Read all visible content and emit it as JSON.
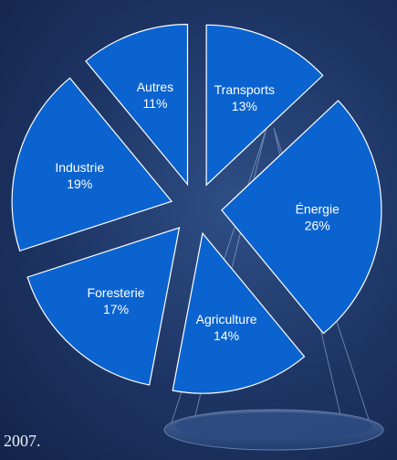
{
  "chart_data": {
    "type": "pie",
    "exploded": true,
    "slices": [
      {
        "label": "Transports",
        "value": 13,
        "display": "13%"
      },
      {
        "label": "Énergie",
        "value": 26,
        "display": "26%"
      },
      {
        "label": "Agriculture",
        "value": 14,
        "display": "14%"
      },
      {
        "label": "Foresterie",
        "value": 17,
        "display": "17%"
      },
      {
        "label": "Industrie",
        "value": 19,
        "display": "19%"
      },
      {
        "label": "Autres",
        "value": 11,
        "display": "11%"
      }
    ],
    "colors": {
      "slice_fill": "#0b63cf",
      "slice_stroke": "#ffffff",
      "label_text": "#ffffff"
    },
    "legend": "none"
  },
  "caption": "2007."
}
